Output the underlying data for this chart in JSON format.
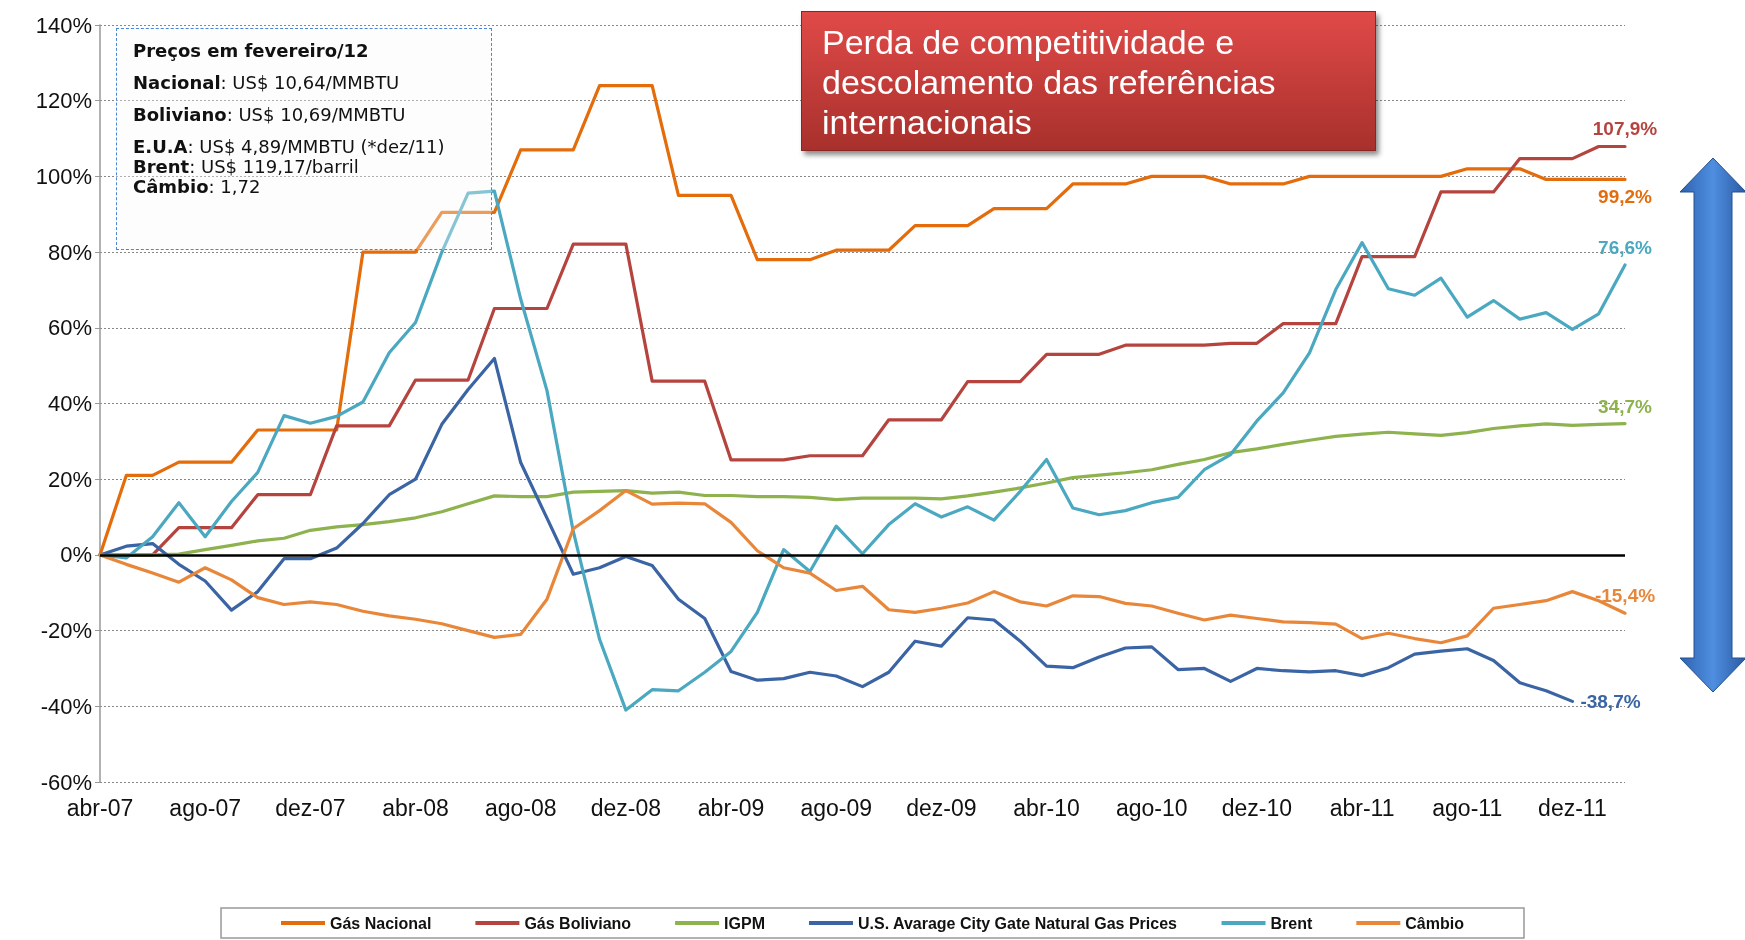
{
  "chart_data": {
    "type": "line",
    "categories": [
      "abr-07",
      null,
      null,
      null,
      "ago-07",
      null,
      null,
      null,
      "dez-07",
      null,
      null,
      null,
      "abr-08",
      null,
      null,
      null,
      "ago-08",
      null,
      null,
      null,
      "dez-08",
      null,
      null,
      null,
      "abr-09",
      null,
      null,
      null,
      "ago-09",
      null,
      null,
      null,
      "dez-09",
      null,
      null,
      null,
      "abr-10",
      null,
      null,
      null,
      "ago-10",
      null,
      null,
      null,
      "dez-10",
      null,
      null,
      null,
      "abr-11",
      null,
      null,
      null,
      "ago-11",
      null,
      null,
      null,
      "dez-11",
      null,
      null
    ],
    "series": [
      {
        "name": "Gás Nacional",
        "color": "#e46c0a",
        "values": [
          0,
          21,
          21,
          24.5,
          24.5,
          24.5,
          33,
          33,
          33,
          33,
          80,
          80,
          80,
          90.5,
          90.5,
          90.5,
          107,
          107,
          107,
          124,
          124,
          124,
          95,
          95,
          95,
          78,
          78,
          78,
          80.5,
          80.5,
          80.5,
          87,
          87,
          87,
          91.5,
          91.5,
          91.5,
          98,
          98,
          98,
          100,
          100,
          100,
          98,
          98,
          98,
          100,
          100,
          100,
          100,
          100,
          100,
          102,
          102,
          102,
          99.2,
          99.2,
          99.2,
          99.2
        ],
        "value_labels": [
          null,
          null,
          null,
          null,
          null,
          null,
          null,
          null,
          null,
          null,
          null,
          null,
          null,
          null,
          null,
          null,
          null,
          null,
          null,
          null,
          null,
          null,
          null,
          null,
          null,
          null,
          null,
          null,
          null,
          null,
          null,
          null,
          null,
          null,
          null,
          null,
          null,
          null,
          null,
          null,
          null,
          null,
          null,
          null,
          null,
          null,
          null,
          null,
          null,
          null,
          null,
          null,
          null,
          null,
          null,
          null,
          null,
          null,
          "99,2%"
        ]
      },
      {
        "name": "Gás Boliviano",
        "color": "#b5443f",
        "values": [
          0,
          0,
          0,
          7.2,
          7.2,
          7.2,
          15.9,
          15.9,
          15.9,
          34.1,
          34.1,
          34.1,
          46.2,
          46.2,
          46.2,
          65.1,
          65.1,
          65.1,
          82.1,
          82.1,
          82.1,
          45.9,
          45.9,
          45.9,
          25.1,
          25.1,
          25.1,
          26.2,
          26.2,
          26.2,
          35.7,
          35.7,
          35.7,
          45.8,
          45.8,
          45.8,
          53,
          53,
          53,
          55.4,
          55.4,
          55.4,
          55.4,
          55.9,
          55.9,
          61.1,
          61.1,
          61.1,
          78.8,
          78.8,
          78.8,
          95.9,
          95.9,
          95.9,
          104.7,
          104.7,
          104.7,
          107.9,
          107.9
        ],
        "value_labels": [
          null,
          null,
          null,
          null,
          null,
          null,
          null,
          null,
          null,
          null,
          null,
          null,
          null,
          null,
          null,
          null,
          null,
          null,
          null,
          null,
          null,
          null,
          null,
          null,
          null,
          null,
          null,
          null,
          null,
          null,
          null,
          null,
          null,
          null,
          null,
          null,
          null,
          null,
          null,
          null,
          null,
          null,
          null,
          null,
          null,
          null,
          null,
          null,
          null,
          null,
          null,
          null,
          null,
          null,
          null,
          null,
          null,
          null,
          "107,9%"
        ]
      },
      {
        "name": "IGPM",
        "color": "#8db24e",
        "values": [
          0,
          0,
          0,
          0.2,
          1.4,
          2.5,
          3.7,
          4.4,
          6.5,
          7.4,
          8,
          8.8,
          9.8,
          11.4,
          13.5,
          15.6,
          15.4,
          15.4,
          16.6,
          16.8,
          17,
          16.3,
          16.6,
          15.7,
          15.7,
          15.4,
          15.4,
          15.2,
          14.6,
          15,
          15,
          15,
          14.8,
          15.6,
          16.6,
          17.7,
          19,
          20.4,
          21.1,
          21.7,
          22.5,
          23.9,
          25.2,
          27,
          28,
          29.2,
          30.3,
          31.3,
          31.9,
          32.4,
          32,
          31.6,
          32.3,
          33.4,
          34.1,
          34.6,
          34.2,
          34.5,
          34.7
        ],
        "value_labels": [
          null,
          null,
          null,
          null,
          null,
          null,
          null,
          null,
          null,
          null,
          null,
          null,
          null,
          null,
          null,
          null,
          null,
          null,
          null,
          null,
          null,
          null,
          null,
          null,
          null,
          null,
          null,
          null,
          null,
          null,
          null,
          null,
          null,
          null,
          null,
          null,
          null,
          null,
          null,
          null,
          null,
          null,
          null,
          null,
          null,
          null,
          null,
          null,
          null,
          null,
          null,
          null,
          null,
          null,
          null,
          null,
          null,
          null,
          "34,7%"
        ]
      },
      {
        "name": "U.S. Avarage City Gate Natural Gas Prices",
        "color": "#3a64a3",
        "values": [
          0,
          2.3,
          3,
          -2.5,
          -6.9,
          -14.6,
          -9.7,
          -1,
          -1,
          1.8,
          8.3,
          15.9,
          20,
          34.5,
          43.7,
          51.9,
          24.4,
          9.7,
          -5.1,
          -3.4,
          -0.4,
          -2.8,
          -11.7,
          -16.8,
          -30.8,
          -33.1,
          -32.7,
          -31,
          -32,
          -34.8,
          -31,
          -22.8,
          -24.1,
          -16.6,
          -17.2,
          -22.8,
          -29.4,
          -29.8,
          -27,
          -24.6,
          -24.3,
          -30.3,
          -30,
          -33.4,
          -30,
          -30.6,
          -30.9,
          -30.6,
          -31.9,
          -29.8,
          -26.2,
          -25.4,
          -24.8,
          -27.9,
          -33.8,
          -35.9,
          -38.7,
          null,
          null
        ],
        "value_labels": [
          null,
          null,
          null,
          null,
          null,
          null,
          null,
          null,
          null,
          null,
          null,
          null,
          null,
          null,
          null,
          null,
          null,
          null,
          null,
          null,
          null,
          null,
          null,
          null,
          null,
          null,
          null,
          null,
          null,
          null,
          null,
          null,
          null,
          null,
          null,
          null,
          null,
          null,
          null,
          null,
          null,
          null,
          null,
          null,
          null,
          null,
          null,
          null,
          null,
          null,
          null,
          null,
          null,
          null,
          null,
          null,
          "-38,7%",
          null,
          null
        ]
      },
      {
        "name": "Brent",
        "color": "#4aa8c0",
        "values": [
          0,
          -0.8,
          4.8,
          13.8,
          4.8,
          14.1,
          21.8,
          36.8,
          34.8,
          36.6,
          40.4,
          53.4,
          61.4,
          80,
          95.6,
          96.1,
          67.6,
          43.4,
          6.2,
          -22.3,
          -41,
          -35.6,
          -35.9,
          -31,
          -25.5,
          -15.2,
          1.4,
          -4.4,
          7.6,
          0.3,
          8,
          13.5,
          10,
          12.7,
          9.2,
          16.8,
          25.2,
          12.4,
          10.6,
          11.7,
          13.8,
          15.2,
          22.5,
          26.5,
          35.4,
          42.8,
          53.4,
          70.1,
          82.5,
          70.3,
          68.6,
          73.1,
          62.8,
          67.2,
          62.3,
          64,
          59.6,
          63.7,
          76.6
        ],
        "value_labels": [
          null,
          null,
          null,
          null,
          null,
          null,
          null,
          null,
          null,
          null,
          null,
          null,
          null,
          null,
          null,
          null,
          null,
          null,
          null,
          null,
          null,
          null,
          null,
          null,
          null,
          null,
          null,
          null,
          null,
          null,
          null,
          null,
          null,
          null,
          null,
          null,
          null,
          null,
          null,
          null,
          null,
          null,
          null,
          null,
          null,
          null,
          null,
          null,
          null,
          null,
          null,
          null,
          null,
          null,
          null,
          null,
          null,
          null,
          "76,6%"
        ]
      },
      {
        "name": "Câmbio",
        "color": "#e8873a",
        "values": [
          0,
          -2.5,
          -4.8,
          -7.2,
          -3.4,
          -6.6,
          -11.3,
          -13.1,
          -12.4,
          -13.1,
          -14.9,
          -16.1,
          -17,
          -18.2,
          -20,
          -21.8,
          -21,
          -11.7,
          6.9,
          11.7,
          17,
          13.4,
          13.7,
          13.5,
          8.6,
          1.1,
          -3.4,
          -4.8,
          -9.4,
          -8.3,
          -14.5,
          -15.2,
          -14.1,
          -12.7,
          -9.7,
          -12.4,
          -13.5,
          -10.8,
          -11,
          -12.8,
          -13.5,
          -15.4,
          -17.2,
          -15.9,
          -16.8,
          -17.7,
          -17.9,
          -18.3,
          -22.1,
          -20.7,
          -22.1,
          -23.2,
          -21.4,
          -14.1,
          -13.1,
          -12.1,
          -9.7,
          -12.1,
          -15.4
        ],
        "value_labels": [
          null,
          null,
          null,
          null,
          null,
          null,
          null,
          null,
          null,
          null,
          null,
          null,
          null,
          null,
          null,
          null,
          null,
          null,
          null,
          null,
          null,
          null,
          null,
          null,
          null,
          null,
          null,
          null,
          null,
          null,
          null,
          null,
          null,
          null,
          null,
          null,
          null,
          null,
          null,
          null,
          null,
          null,
          null,
          null,
          null,
          null,
          null,
          null,
          null,
          null,
          null,
          null,
          null,
          null,
          null,
          null,
          null,
          null,
          "-15,4%"
        ]
      }
    ],
    "ylim": [
      -60,
      140
    ],
    "yticks": [
      {
        "value": -60,
        "label": "-60%"
      },
      {
        "value": -40,
        "label": "-40%"
      },
      {
        "value": -20,
        "label": "-20%"
      },
      {
        "value": 0,
        "label": "0%"
      },
      {
        "value": 20,
        "label": "20%"
      },
      {
        "value": 40,
        "label": "40%"
      },
      {
        "value": 60,
        "label": "60%"
      },
      {
        "value": 80,
        "label": "80%"
      },
      {
        "value": 100,
        "label": "100%"
      },
      {
        "value": 120,
        "label": "120%"
      },
      {
        "value": 140,
        "label": "140%"
      }
    ],
    "ref_lines": [
      {
        "axis": "y",
        "value": 0,
        "color": "#000000"
      }
    ],
    "grid": "y",
    "legend": "bottom",
    "marker": "none",
    "line_style": "solid",
    "annotations": [
      "Preços em fevereiro/12",
      "Nacional: US$ 10,64/MMBTU",
      "Boliviano: US$ 10,69/MMBTU",
      "E.U.A: US$ 4,89/MMBTU (*dez/11)",
      "Brent: US$ 119,17/barril",
      "Câmbio: 1,72",
      "Perda de competitividade e descolamento das referências internacionais"
    ]
  }
}
